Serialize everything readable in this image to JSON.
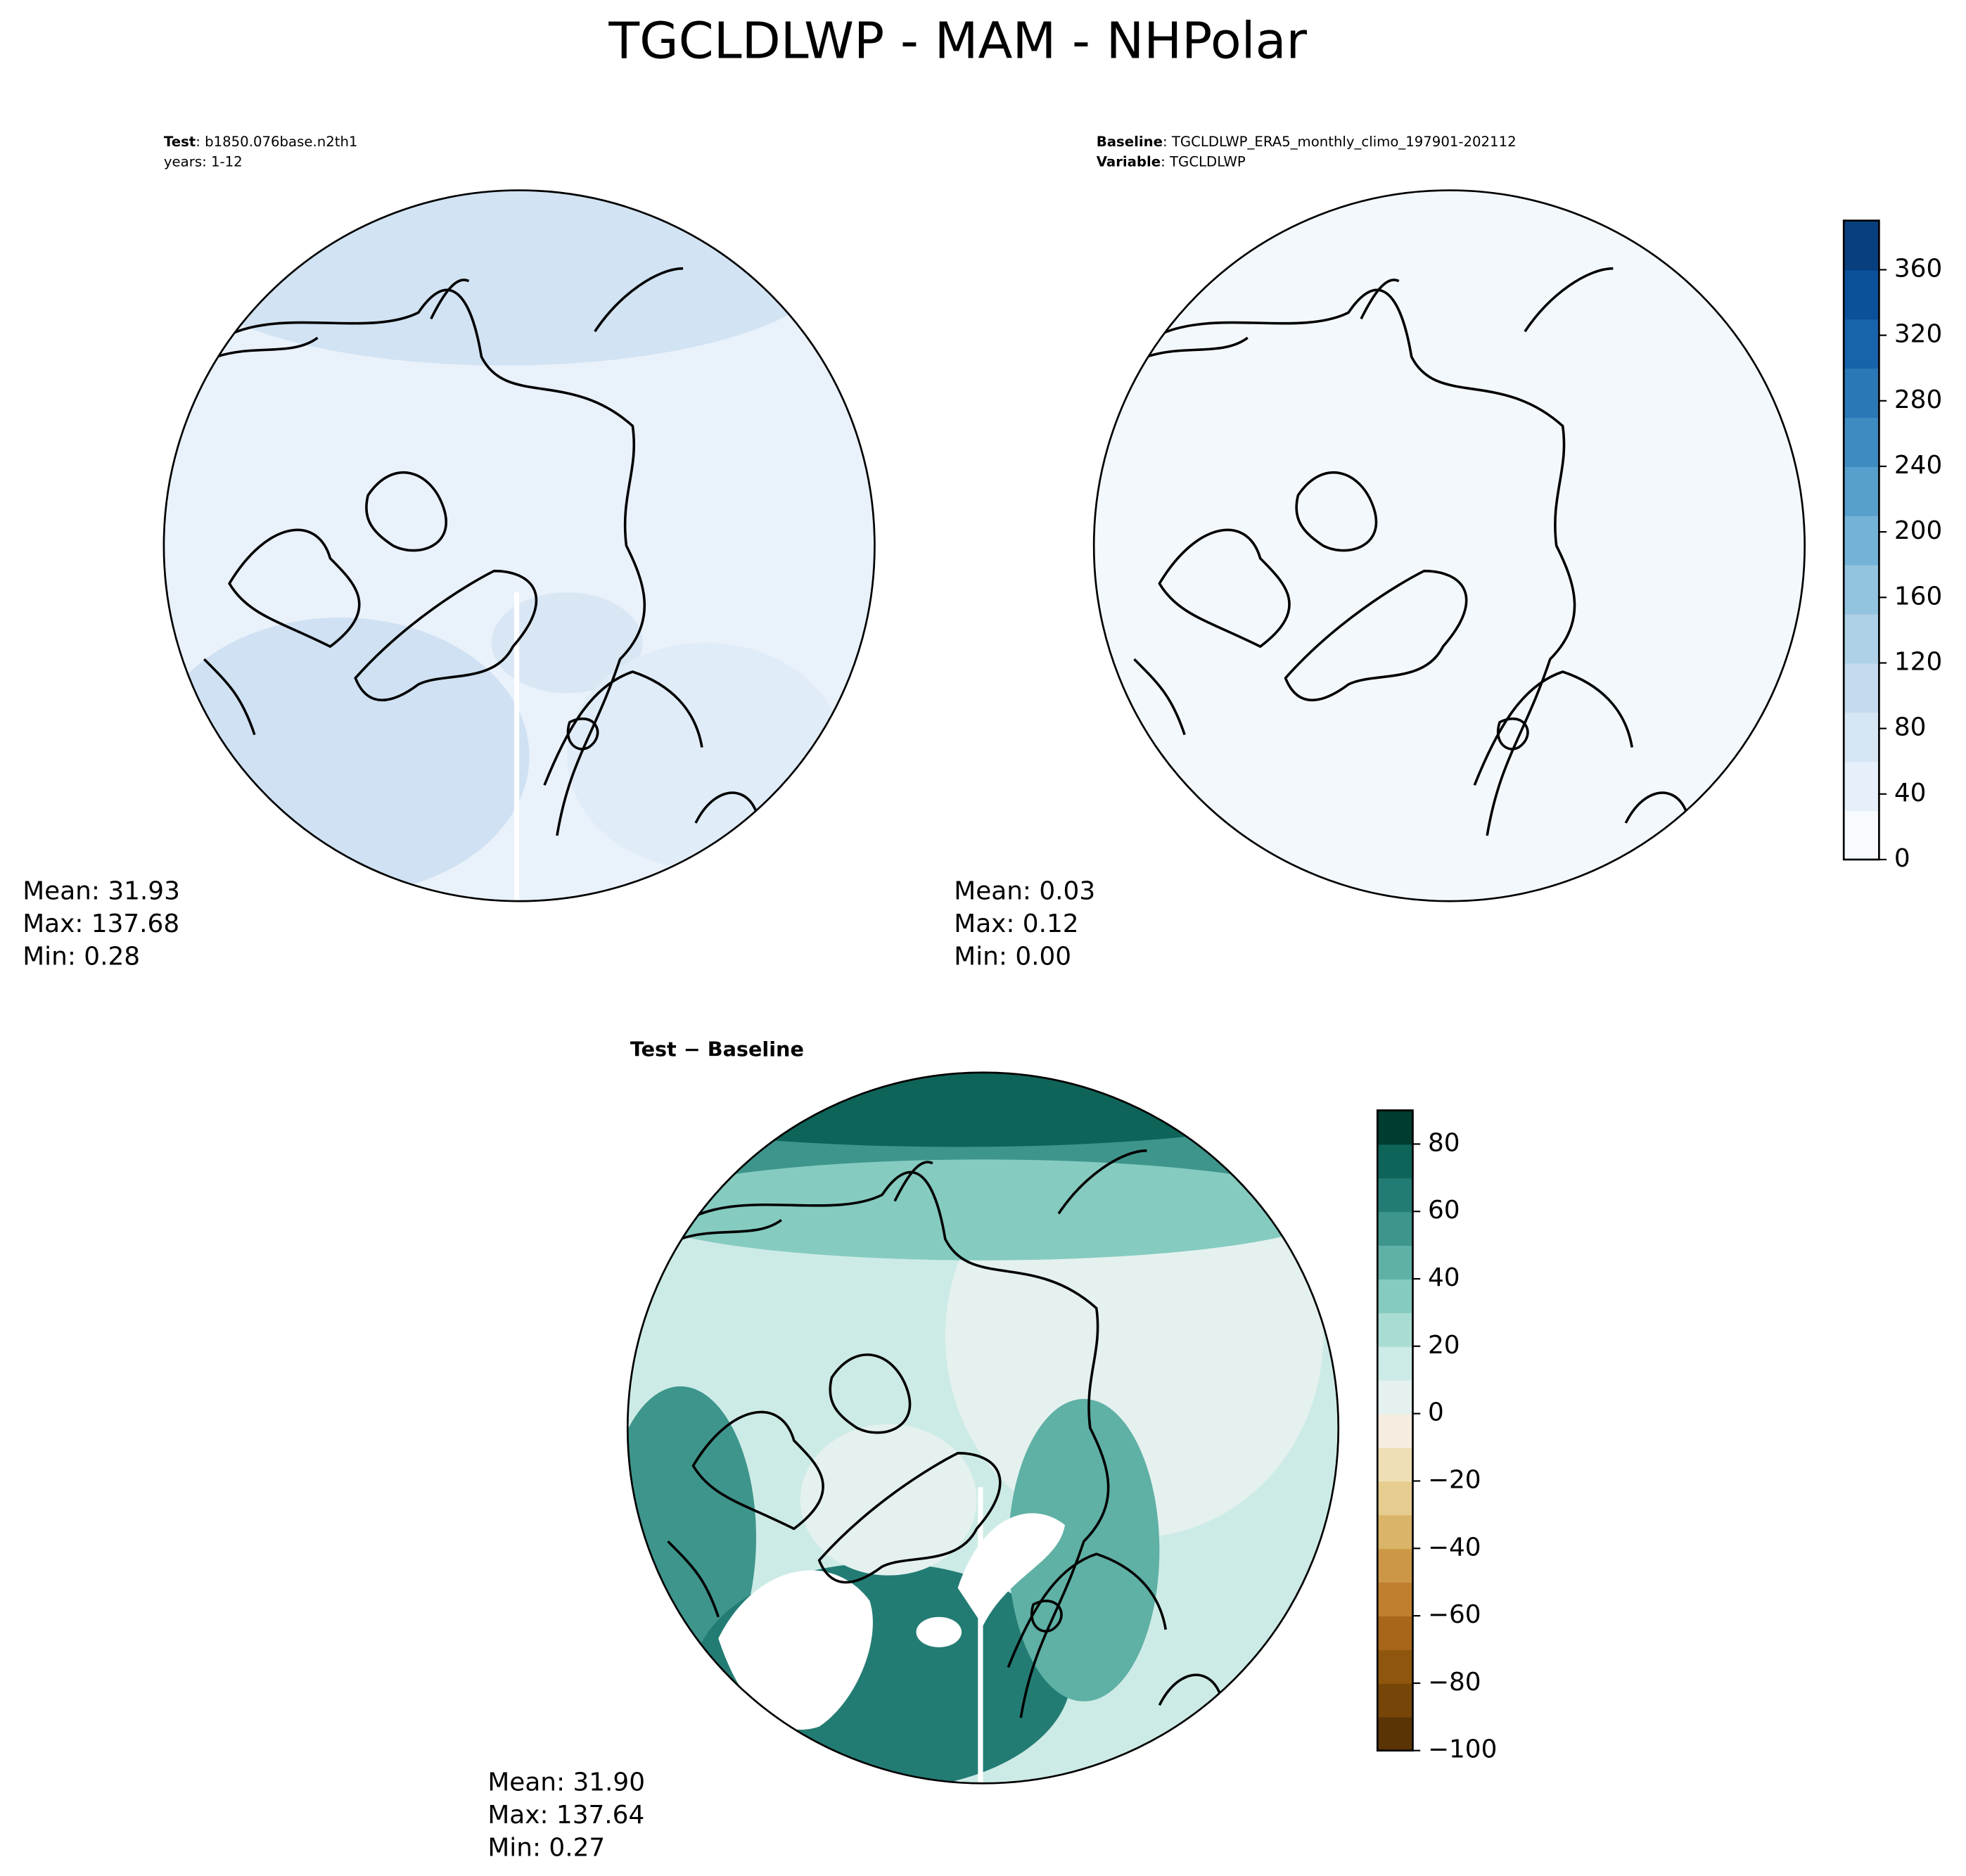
{
  "title": "TGCLDLWP - MAM - NHPolar",
  "panels": [
    {
      "label_key": "Test",
      "label_text": ": b1850.076base.n2th1",
      "line2": "years: 1-12",
      "stats": [
        "Mean: 31.93",
        "Max: 137.68",
        "Min:  0.28"
      ]
    },
    {
      "label_key": "Baseline",
      "label_text": ": TGCLDLWP_ERA5_monthly_climo_197901-202112",
      "line2_key": "Variable",
      "line2_text": ": TGCLDLWP",
      "stats": [
        "Mean:  0.03",
        "Max:  0.12",
        "Min:  0.00"
      ]
    },
    {
      "label_key": "Test − Baseline",
      "stats": [
        "Mean: 31.90",
        "Max: 137.64",
        "Min:  0.27"
      ]
    }
  ],
  "colorbars": [
    {
      "ylim": [
        0,
        390
      ],
      "yticks": [
        0,
        40,
        80,
        120,
        160,
        200,
        240,
        280,
        320,
        360
      ],
      "colors": [
        "#f7fbff",
        "#e6f0fa",
        "#d6e6f4",
        "#c5daee",
        "#aed1e7",
        "#93c4df",
        "#74b2d8",
        "#579fcd",
        "#3e8bc1",
        "#2a78b6",
        "#1764ab",
        "#0a519a",
        "#08407f"
      ]
    },
    {
      "ylim": [
        -100,
        90
      ],
      "yticks": [
        {
          "value": -100,
          "label": "−100"
        },
        {
          "value": -80,
          "label": "−80"
        },
        {
          "value": -60,
          "label": "−60"
        },
        {
          "value": -40,
          "label": "−40"
        },
        {
          "value": -20,
          "label": "−20"
        },
        0,
        20,
        40,
        60,
        80
      ],
      "colors": [
        "#5a3405",
        "#764609",
        "#8f570e",
        "#a8661a",
        "#bf7f2e",
        "#cc9846",
        "#dab468",
        "#e6cc8e",
        "#efdfb4",
        "#f5ede0",
        "#e4f1ef",
        "#cdebe6",
        "#a9ddd4",
        "#85cbc0",
        "#5fb0a5",
        "#3e958c",
        "#237c74",
        "#0f6459",
        "#003c30"
      ]
    }
  ]
}
